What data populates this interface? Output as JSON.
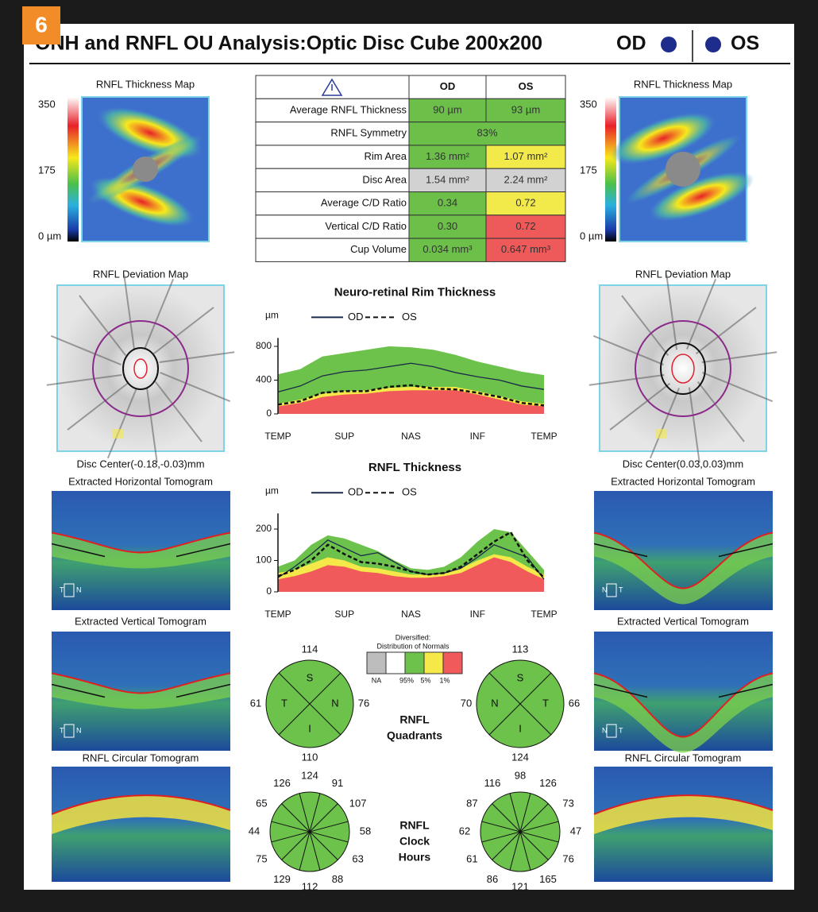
{
  "badge": "6",
  "header": {
    "title": "ONH and RNFL OU Analysis:Optic Disc Cube 200x200",
    "od": "OD",
    "os": "OS",
    "od_color": "#1e2d8c",
    "os_color": "#1e2d8c"
  },
  "od_panel": {
    "thickness_map": "RNFL Thickness Map",
    "scale": [
      "350",
      "175",
      "0 µm"
    ],
    "deviation_map": "RNFL Deviation Map",
    "disc_center": "Disc Center(-0.18,-0.03)mm",
    "horizontal_tomogram": "Extracted Horizontal Tomogram",
    "horizontal_orientation": [
      "T",
      "N"
    ],
    "vertical_tomogram": "Extracted Vertical Tomogram",
    "vertical_orientation": [
      "T",
      "N"
    ],
    "circular_tomogram": "RNFL Circular Tomogram"
  },
  "os_panel": {
    "thickness_map": "RNFL Thickness Map",
    "scale": [
      "350",
      "175",
      "0 µm"
    ],
    "deviation_map": "RNFL Deviation Map",
    "disc_center": "Disc Center(0.03,0.03)mm",
    "horizontal_tomogram": "Extracted Horizontal Tomogram",
    "horizontal_orientation": [
      "N",
      "T"
    ],
    "vertical_tomogram": "Extracted Vertical Tomogram",
    "vertical_orientation": [
      "N",
      "T"
    ],
    "circular_tomogram": "RNFL Circular Tomogram"
  },
  "table": {
    "columns": [
      "OD",
      "OS"
    ],
    "rows": [
      {
        "label": "Average RNFL Thickness",
        "cells": [
          {
            "text": "90 µm",
            "color": "#6cc04a"
          },
          {
            "text": "93 µm",
            "color": "#6cc04a"
          }
        ]
      },
      {
        "label": "RNFL Symmetry",
        "cells": [
          {
            "text": "83%",
            "color": "#6cc04a"
          }
        ]
      },
      {
        "label": "Rim Area",
        "cells": [
          {
            "text": "1.36 mm²",
            "color": "#6cc04a"
          },
          {
            "text": "1.07 mm²",
            "color": "#f2ea4a"
          }
        ]
      },
      {
        "label": "Disc Area",
        "cells": [
          {
            "text": "1.54 mm²",
            "color": "#d2d2d2"
          },
          {
            "text": "2.24 mm²",
            "color": "#d2d2d2"
          }
        ]
      },
      {
        "label": "Average C/D Ratio",
        "cells": [
          {
            "text": "0.34",
            "color": "#6cc04a"
          },
          {
            "text": "0.72",
            "color": "#f2ea4a"
          }
        ]
      },
      {
        "label": "Vertical C/D Ratio",
        "cells": [
          {
            "text": "0.30",
            "color": "#6cc04a"
          },
          {
            "text": "0.72",
            "color": "#ee5a5a"
          }
        ]
      },
      {
        "label": "Cup Volume",
        "cells": [
          {
            "text": "0.034 mm³",
            "color": "#6cc04a"
          },
          {
            "text": "0.647 mm³",
            "color": "#ee5a5a"
          }
        ]
      }
    ]
  },
  "rim_chart": {
    "type": "line",
    "title": "Neuro-retinal Rim Thickness",
    "y_unit": "µm",
    "x": [
      0,
      1,
      2,
      3,
      4,
      5,
      6,
      7,
      8,
      9,
      10,
      11,
      12
    ],
    "xlim": [
      0,
      12
    ],
    "xticks": [
      {
        "value": 0,
        "label": "TEMP"
      },
      {
        "value": 3,
        "label": "SUP"
      },
      {
        "value": 6,
        "label": "NAS"
      },
      {
        "value": 9,
        "label": "INF"
      },
      {
        "value": 12,
        "label": "TEMP"
      }
    ],
    "ylim": [
      0,
      900
    ],
    "yticks": [
      0,
      400,
      800
    ],
    "bands": [
      {
        "color": "#6cc24a",
        "values": [
          470,
          530,
          680,
          720,
          760,
          800,
          790,
          760,
          700,
          620,
          560,
          500,
          460
        ]
      },
      {
        "color": "#f5e94a",
        "values": [
          120,
          170,
          240,
          270,
          280,
          310,
          320,
          320,
          320,
          270,
          210,
          150,
          120
        ]
      },
      {
        "color": "#f05a5a",
        "values": [
          90,
          130,
          200,
          230,
          240,
          270,
          280,
          280,
          280,
          230,
          170,
          110,
          90
        ]
      }
    ],
    "series": [
      {
        "name": "OD",
        "color": "#1a2a4a",
        "dash": false,
        "values": [
          260,
          330,
          450,
          500,
          520,
          560,
          600,
          560,
          490,
          440,
          400,
          330,
          290
        ]
      },
      {
        "name": "OS",
        "color": "#111111",
        "dash": true,
        "values": [
          110,
          150,
          250,
          270,
          270,
          320,
          340,
          300,
          290,
          250,
          200,
          130,
          100
        ]
      }
    ]
  },
  "rnfl_chart": {
    "type": "line",
    "title": "RNFL Thickness",
    "y_unit": "µm",
    "x": [
      0,
      1,
      2,
      3,
      4,
      5,
      6,
      7,
      8,
      9,
      10,
      11,
      12,
      13,
      14,
      15,
      16
    ],
    "xlim": [
      0,
      16
    ],
    "xticks": [
      {
        "value": 0,
        "label": "TEMP"
      },
      {
        "value": 4,
        "label": "SUP"
      },
      {
        "value": 8,
        "label": "NAS"
      },
      {
        "value": 12,
        "label": "INF"
      },
      {
        "value": 16,
        "label": "TEMP"
      }
    ],
    "ylim": [
      0,
      250
    ],
    "yticks": [
      0,
      100,
      200
    ],
    "bands": [
      {
        "color": "#6cc24a",
        "values": [
          80,
          100,
          150,
          180,
          170,
          150,
          130,
          100,
          75,
          70,
          80,
          110,
          160,
          200,
          190,
          130,
          70
        ]
      },
      {
        "color": "#f5e94a",
        "values": [
          60,
          70,
          90,
          110,
          100,
          80,
          75,
          65,
          55,
          55,
          60,
          75,
          100,
          120,
          110,
          80,
          55
        ]
      },
      {
        "color": "#f05a5a",
        "values": [
          40,
          50,
          65,
          85,
          80,
          65,
          60,
          50,
          45,
          45,
          50,
          60,
          85,
          110,
          95,
          65,
          40
        ]
      }
    ],
    "series": [
      {
        "name": "OD",
        "color": "#1a2a4a",
        "dash": false,
        "values": [
          45,
          80,
          120,
          165,
          140,
          115,
          125,
          95,
          65,
          55,
          60,
          75,
          110,
          150,
          130,
          110,
          40
        ]
      },
      {
        "name": "OS",
        "color": "#111111",
        "dash": true,
        "values": [
          50,
          70,
          100,
          150,
          120,
          95,
          90,
          80,
          65,
          55,
          60,
          80,
          120,
          160,
          190,
          100,
          45
        ]
      }
    ]
  },
  "normals_legend": {
    "title": [
      "Diversified:",
      "Distribution of Normals"
    ],
    "boxes": [
      {
        "color": "#bdbdbd",
        "label": "NA"
      },
      {
        "color": "#ffffff",
        "label": "95%"
      },
      {
        "color": "#6cc24a",
        "label": "5%"
      },
      {
        "color": "#f5e94a",
        "label": "1%"
      },
      {
        "color": "#f05a5a"
      }
    ]
  },
  "quadrants": {
    "label": [
      "RNFL",
      "Quadrants"
    ],
    "color": "#6cc24a",
    "od": [
      {
        "sector": "S",
        "value": 114
      },
      {
        "sector": "N",
        "value": 76
      },
      {
        "sector": "I",
        "value": 110
      },
      {
        "sector": "T",
        "value": 61
      }
    ],
    "os": [
      {
        "sector": "S",
        "value": 113
      },
      {
        "sector": "T",
        "value": 66
      },
      {
        "sector": "I",
        "value": 124
      },
      {
        "sector": "N",
        "value": 70
      }
    ]
  },
  "clock_hours": {
    "label": [
      "RNFL",
      "Clock",
      "Hours"
    ],
    "color": "#6cc24a",
    "od": [
      124,
      91,
      107,
      58,
      63,
      88,
      112,
      129,
      75,
      44,
      65,
      126
    ],
    "os": [
      98,
      126,
      73,
      47,
      76,
      165,
      121,
      86,
      61,
      62,
      87,
      116
    ]
  }
}
